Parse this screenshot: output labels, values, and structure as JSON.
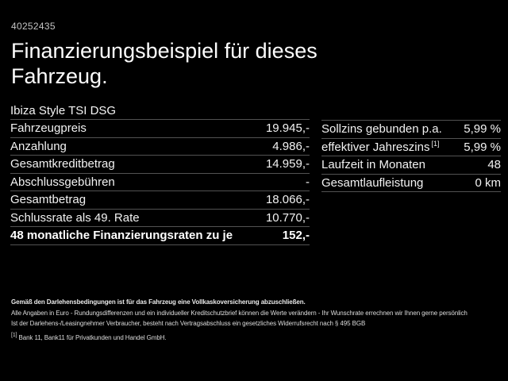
{
  "page": {
    "listing_id": "40252435",
    "title_line1": "Finanzierungsbeispiel für dieses",
    "title_line2": "Fahrzeug.",
    "vehicle_model": "Ibiza Style TSI DSG"
  },
  "finance_table": {
    "rows": [
      {
        "label": "Fahrzeugpreis",
        "value": "19.945,-"
      },
      {
        "label": "Anzahlung",
        "value": "4.986,-"
      },
      {
        "label": "Gesamtkreditbetrag",
        "value": "14.959,-"
      },
      {
        "label": "Abschlussgebühren",
        "value": "-"
      },
      {
        "label": "Gesamtbetrag",
        "value": "18.066,-"
      },
      {
        "label": "Schlussrate als 49. Rate",
        "value": "10.770,-"
      }
    ],
    "total_row": {
      "label": "48 monatliche Finanzierungsraten zu je",
      "value": "152,-"
    }
  },
  "conditions_table": {
    "rows": [
      {
        "label": "Sollzins gebunden p.a.",
        "value": "5,99 %"
      },
      {
        "label": "effektiver Jahreszins",
        "footnote_marker": "[1]",
        "value": "5,99 %"
      },
      {
        "label": "Laufzeit in Monaten",
        "value": "48"
      },
      {
        "label": "Gesamtlaufleistung",
        "value": "0 km"
      }
    ]
  },
  "legal": {
    "insurance_note": "Gemäß den Darlehensbedingungen ist für das Fahrzeug eine Vollkaskoversicherung abzuschließen.",
    "disclaimer_line1": "Alle Angaben in Euro - Rundungsdifferenzen und ein individueller Kreditschutzbrief können die Werte verändern - Ihr Wunschrate errechnen wir Ihnen gerne persönlich",
    "disclaimer_line2": "Ist der Darlehens-/Leasingnehmer Verbraucher, besteht nach Vertragsabschluss ein gesetzliches Widerrufsrecht nach § 495 BGB",
    "footnote_marker": "[1]",
    "footnote_text": "Bank 11, Bank11 für Privatkunden und Handel GmbH."
  },
  "colors": {
    "background": "#000000",
    "primary_text": "#f2f2f2",
    "muted_text": "#c4c4c4",
    "divider": "#525252"
  }
}
